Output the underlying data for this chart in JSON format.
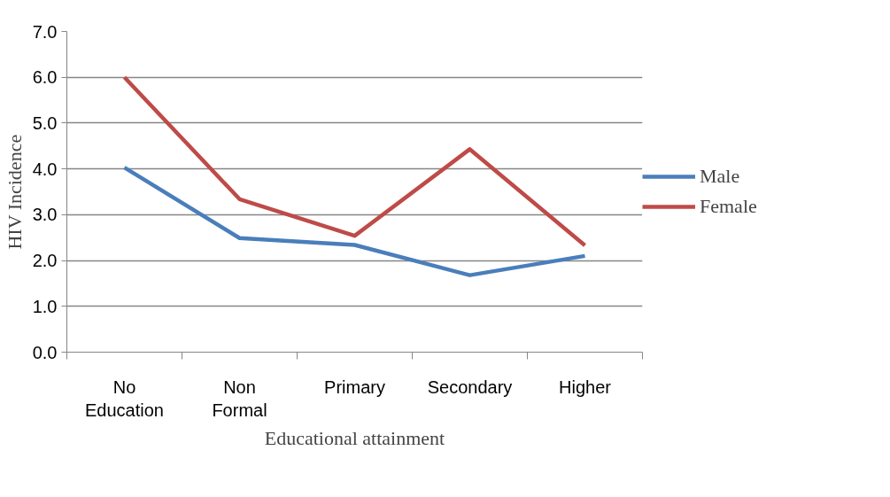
{
  "chart_data": {
    "type": "line",
    "categories": [
      "No Education",
      "Non Formal",
      "Primary",
      "Secondary",
      "Higher"
    ],
    "series": [
      {
        "name": "Male",
        "color": "#4a7ebb",
        "values": [
          4.03,
          2.49,
          2.34,
          1.68,
          2.1
        ]
      },
      {
        "name": "Female",
        "color": "#be4b48",
        "values": [
          6.0,
          3.34,
          2.54,
          4.43,
          2.33
        ]
      }
    ],
    "xlabel": "Educational attainment",
    "ylabel": "HIV Incidence",
    "ylim": [
      0,
      7
    ],
    "yticks": [
      {
        "value": 0,
        "label": "0.0"
      },
      {
        "value": 1,
        "label": "1.0"
      },
      {
        "value": 2,
        "label": "2.0"
      },
      {
        "value": 3,
        "label": "3.0"
      },
      {
        "value": 4,
        "label": "4.0"
      },
      {
        "value": 5,
        "label": "5.0"
      },
      {
        "value": 6,
        "label": "6.0"
      },
      {
        "value": 7,
        "label": "7.0"
      }
    ],
    "grid": "y",
    "legend": "right",
    "marker": "none",
    "line_style": "solid"
  }
}
